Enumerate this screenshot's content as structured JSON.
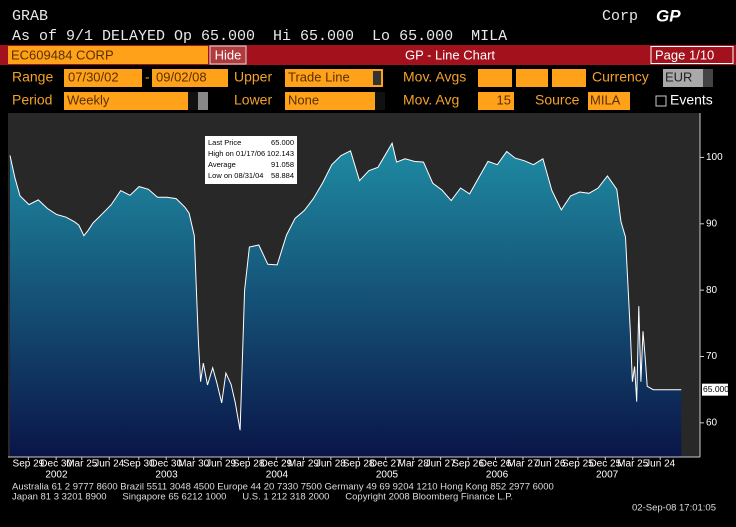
{
  "header": {
    "ticker": "GRAB",
    "market": "Corp",
    "function": "GP",
    "quote": "As of 9/1 DELAYED Op 65.000  Hi 65.000  Lo 65.000  MILA"
  },
  "toolbar": {
    "security": "EC609484 CORP",
    "hide_button": "Hide",
    "title": "GP - Line Chart",
    "page": "Page 1/10"
  },
  "settings": {
    "range_label": "Range",
    "range_start": "07/30/02",
    "range_separator": "-",
    "range_end": "09/02/08",
    "upper_label": "Upper",
    "upper_value": "Trade Line",
    "mov_avgs_label": "Mov. Avgs",
    "currency_label": "Currency",
    "currency_value": "EUR",
    "period_label": "Period",
    "period_value": "Weekly",
    "lower_label": "Lower",
    "lower_value": "None",
    "mov_avg_label": "Mov. Avg",
    "mov_avg_value": "15",
    "source_label": "Source",
    "source_value": "MILA",
    "events_label": "Events"
  },
  "chart_data": {
    "type": "area",
    "x": [
      "2002-07-30",
      "2002-08-15",
      "2002-09-01",
      "2002-10-01",
      "2002-11-01",
      "2002-12-01",
      "2003-01-01",
      "2003-02-01",
      "2003-03-01",
      "2003-03-15",
      "2003-04-01",
      "2003-04-15",
      "2003-05-01",
      "2003-06-01",
      "2003-07-01",
      "2003-08-01",
      "2003-09-01",
      "2003-10-01",
      "2003-11-01",
      "2003-12-01",
      "2004-01-01",
      "2004-02-01",
      "2004-03-01",
      "2004-03-15",
      "2004-04-01",
      "2004-04-08",
      "2004-04-15",
      "2004-04-22",
      "2004-05-01",
      "2004-05-15",
      "2004-06-01",
      "2004-06-15",
      "2004-07-01",
      "2004-07-15",
      "2004-08-01",
      "2004-08-15",
      "2004-08-31",
      "2004-09-15",
      "2004-10-01",
      "2004-11-01",
      "2004-12-01",
      "2005-01-01",
      "2005-02-01",
      "2005-03-01",
      "2005-04-01",
      "2005-05-01",
      "2005-06-01",
      "2005-07-01",
      "2005-08-01",
      "2005-09-01",
      "2005-10-01",
      "2005-11-01",
      "2005-12-01",
      "2006-01-17",
      "2006-02-01",
      "2006-03-01",
      "2006-04-01",
      "2006-05-01",
      "2006-06-01",
      "2006-07-01",
      "2006-08-01",
      "2006-09-01",
      "2006-10-01",
      "2006-11-01",
      "2006-12-01",
      "2007-01-01",
      "2007-02-01",
      "2007-03-01",
      "2007-04-01",
      "2007-05-01",
      "2007-06-01",
      "2007-07-01",
      "2007-08-01",
      "2007-09-01",
      "2007-10-01",
      "2007-11-01",
      "2007-12-01",
      "2008-01-01",
      "2008-02-01",
      "2008-02-15",
      "2008-03-01",
      "2008-03-10",
      "2008-03-17",
      "2008-03-24",
      "2008-03-31",
      "2008-04-07",
      "2008-04-14",
      "2008-04-21",
      "2008-04-28",
      "2008-05-05",
      "2008-05-12",
      "2008-06-01",
      "2008-07-01",
      "2008-08-01",
      "2008-09-02"
    ],
    "values": [
      100.3,
      97,
      94.2,
      92.9,
      93.6,
      92.3,
      91.4,
      91,
      90.3,
      89.8,
      88.2,
      89,
      90.1,
      91.5,
      92.9,
      95,
      94.3,
      95.6,
      95.2,
      94,
      94,
      93.8,
      92.5,
      91.6,
      88.2,
      80,
      72,
      66.2,
      69,
      65.7,
      68.3,
      66,
      63,
      67.5,
      65.8,
      63,
      58.884,
      80,
      86.5,
      86.8,
      83.9,
      83.8,
      88.3,
      90.8,
      92,
      93.8,
      96.2,
      98.9,
      100.3,
      101,
      96.5,
      98,
      98.5,
      102.143,
      99.3,
      99.8,
      99.4,
      99.3,
      96.1,
      95.1,
      93.5,
      95.4,
      94.5,
      97,
      99.4,
      98.9,
      100.9,
      99.9,
      99.5,
      98.9,
      99.8,
      95,
      92.1,
      94.2,
      94.8,
      94.6,
      95.4,
      97.2,
      95.2,
      90.3,
      88,
      80,
      73.8,
      66.2,
      68.5,
      63.2,
      77.6,
      66.2,
      73.8,
      70,
      65.5,
      65,
      65,
      65,
      65
    ],
    "xlim": [
      "2002-07-30",
      "2008-11-03"
    ],
    "xticks": [
      {
        "value": "2002-09-29",
        "label": "Sep 29"
      },
      {
        "value": "2002-12-30",
        "label": "Dec 30"
      },
      {
        "value": "2003-03-25",
        "label": "Mar 25"
      },
      {
        "value": "2003-06-24",
        "label": "Jun 24"
      },
      {
        "value": "2003-09-30",
        "label": "Sep 30"
      },
      {
        "value": "2003-12-30",
        "label": "Dec 30"
      },
      {
        "value": "2004-03-30",
        "label": "Mar 30"
      },
      {
        "value": "2004-06-29",
        "label": "Jun 29"
      },
      {
        "value": "2004-09-28",
        "label": "Sep 28"
      },
      {
        "value": "2004-12-29",
        "label": "Dec 29"
      },
      {
        "value": "2005-03-29",
        "label": "Mar 29"
      },
      {
        "value": "2005-06-28",
        "label": "Jun 28"
      },
      {
        "value": "2005-09-28",
        "label": "Sep 28"
      },
      {
        "value": "2005-12-27",
        "label": "Dec 27"
      },
      {
        "value": "2006-03-28",
        "label": "Mar 28"
      },
      {
        "value": "2006-06-27",
        "label": "Jun 27"
      },
      {
        "value": "2006-09-26",
        "label": "Sep 26"
      },
      {
        "value": "2006-12-26",
        "label": "Dec 26"
      },
      {
        "value": "2007-03-27",
        "label": "Mar 27"
      },
      {
        "value": "2007-06-26",
        "label": "Jun 26"
      },
      {
        "value": "2007-09-25",
        "label": "Sep 25"
      },
      {
        "value": "2007-12-25",
        "label": "Dec 25"
      },
      {
        "value": "2008-03-25",
        "label": "Mar 25"
      },
      {
        "value": "2008-06-24",
        "label": "Jun 24"
      }
    ],
    "year_labels": [
      2002,
      2003,
      2004,
      2005,
      2006,
      2007
    ],
    "ylim": [
      54.85,
      106.7
    ],
    "yticks": [
      60,
      70,
      80,
      90,
      100
    ],
    "grid": false,
    "line_color": "#ffffff",
    "fill_top": "#1f8ca3",
    "fill_bottom": "#0a1548",
    "stats": [
      {
        "name": "Last Price",
        "text": "65.000"
      },
      {
        "name": "High on 01/17/06",
        "text": "102.143"
      },
      {
        "name": "Average",
        "text": "91.058"
      },
      {
        "name": "Low on 08/31/04",
        "text": "58.884"
      }
    ]
  },
  "footer": {
    "contacts_line1": "Australia 61 2 9777 8600 Brazil 5511 3048 4500 Europe 44 20 7330 7500 Germany 49 69 9204 1210 Hong Kong 852 2977 6000",
    "contacts_line2": "Japan 81 3 3201 8900      Singapore 65 6212 1000      U.S. 1 212 318 2000      Copyright 2008 Bloomberg Finance L.P.",
    "timestamp": "02-Sep-08 17:01:05"
  }
}
